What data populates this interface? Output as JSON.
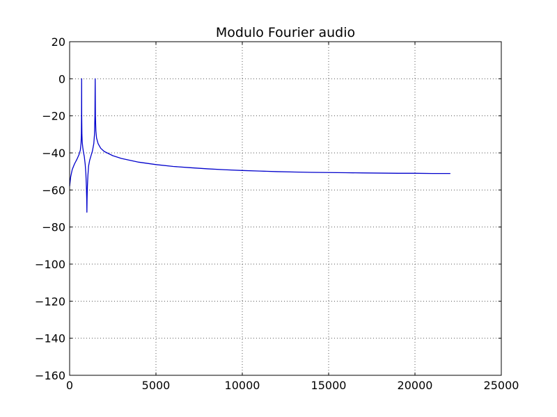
{
  "chart_data": {
    "type": "line",
    "title": "Modulo Fourier audio",
    "xlabel": "",
    "ylabel": "",
    "xlim": [
      0,
      25000
    ],
    "ylim": [
      -160,
      20
    ],
    "xticks": [
      0,
      5000,
      10000,
      15000,
      20000,
      25000
    ],
    "yticks": [
      -160,
      -140,
      -120,
      -100,
      -80,
      -60,
      -40,
      -20,
      0,
      20
    ],
    "grid": true,
    "colors": {
      "line": "#0000cc",
      "grid": "#555555"
    },
    "series": [
      {
        "points": [
          [
            0,
            -58
          ],
          [
            60,
            -53
          ],
          [
            150,
            -49
          ],
          [
            280,
            -46
          ],
          [
            420,
            -43.5
          ],
          [
            540,
            -41
          ],
          [
            620,
            -38.5
          ],
          [
            660,
            -35
          ],
          [
            680,
            -30
          ],
          [
            690,
            -20
          ],
          [
            695,
            0
          ],
          [
            700,
            -20
          ],
          [
            712,
            -30
          ],
          [
            730,
            -34
          ],
          [
            760,
            -37
          ],
          [
            800,
            -39.5
          ],
          [
            850,
            -42
          ],
          [
            900,
            -46
          ],
          [
            940,
            -51
          ],
          [
            970,
            -58
          ],
          [
            990,
            -65
          ],
          [
            1000,
            -72
          ],
          [
            1010,
            -65
          ],
          [
            1030,
            -58
          ],
          [
            1060,
            -52
          ],
          [
            1100,
            -47
          ],
          [
            1160,
            -44
          ],
          [
            1240,
            -41.5
          ],
          [
            1320,
            -39
          ],
          [
            1400,
            -35
          ],
          [
            1440,
            -30
          ],
          [
            1465,
            -20
          ],
          [
            1480,
            0
          ],
          [
            1495,
            -20
          ],
          [
            1520,
            -28
          ],
          [
            1560,
            -32
          ],
          [
            1650,
            -35
          ],
          [
            1800,
            -37.5
          ],
          [
            2000,
            -39.2
          ],
          [
            2500,
            -41.5
          ],
          [
            3000,
            -43
          ],
          [
            4000,
            -45
          ],
          [
            5000,
            -46.3
          ],
          [
            6000,
            -47.3
          ],
          [
            7000,
            -48
          ],
          [
            8000,
            -48.6
          ],
          [
            9000,
            -49.1
          ],
          [
            10000,
            -49.5
          ],
          [
            11000,
            -49.8
          ],
          [
            12000,
            -50.1
          ],
          [
            13000,
            -50.3
          ],
          [
            14000,
            -50.5
          ],
          [
            15000,
            -50.6
          ],
          [
            16000,
            -50.7
          ],
          [
            17000,
            -50.8
          ],
          [
            18000,
            -50.9
          ],
          [
            19000,
            -51
          ],
          [
            20000,
            -51
          ],
          [
            21000,
            -51.1
          ],
          [
            22050,
            -51.1
          ]
        ]
      }
    ]
  }
}
